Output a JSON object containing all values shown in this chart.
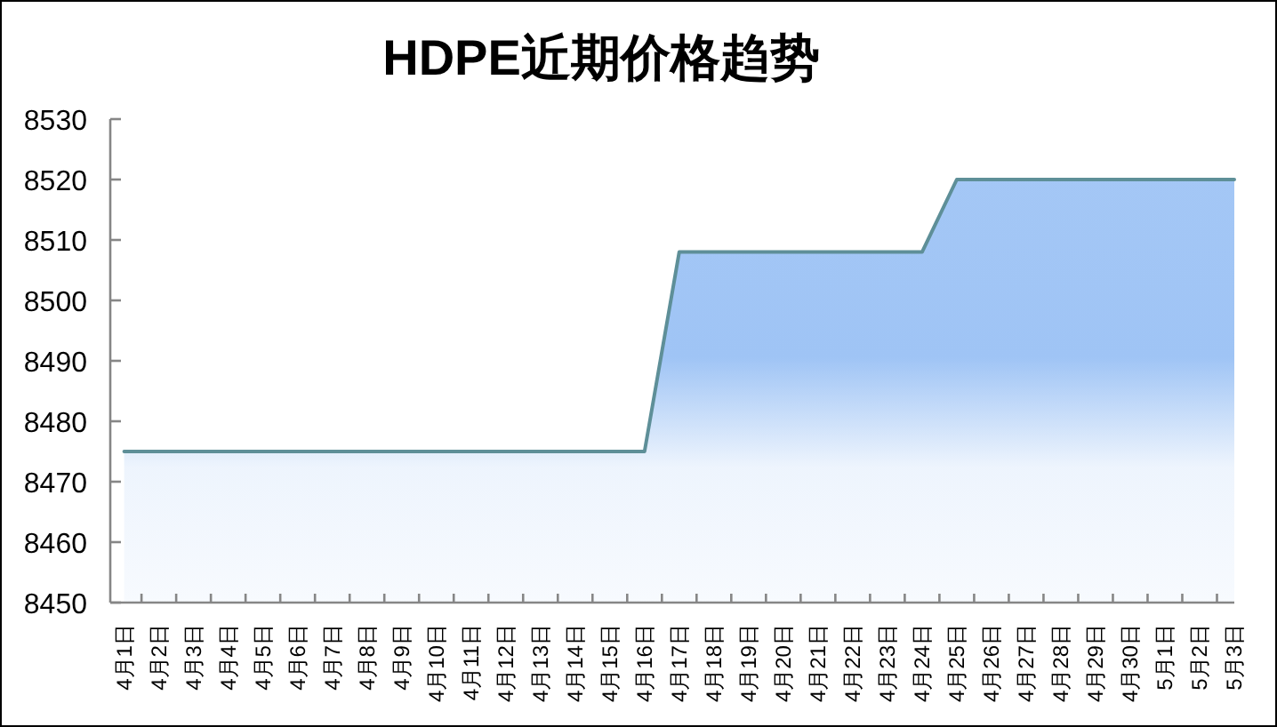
{
  "chart_data": {
    "type": "area",
    "title": "HDPE近期价格趋势",
    "categories": [
      "4月1日",
      "4月2日",
      "4月3日",
      "4月4日",
      "4月5日",
      "4月6日",
      "4月7日",
      "4月8日",
      "4月9日",
      "4月10日",
      "4月11日",
      "4月12日",
      "4月13日",
      "4月14日",
      "4月15日",
      "4月16日",
      "4月17日",
      "4月18日",
      "4月19日",
      "4月20日",
      "4月21日",
      "4月22日",
      "4月23日",
      "4月24日",
      "4月25日",
      "4月26日",
      "4月27日",
      "4月28日",
      "4月29日",
      "4月30日",
      "5月1日",
      "5月2日",
      "5月3日"
    ],
    "values": [
      8475,
      8475,
      8475,
      8475,
      8475,
      8475,
      8475,
      8475,
      8475,
      8475,
      8475,
      8475,
      8475,
      8475,
      8475,
      8475,
      8508,
      8508,
      8508,
      8508,
      8508,
      8508,
      8508,
      8508,
      8520,
      8520,
      8520,
      8520,
      8520,
      8520,
      8520,
      8520,
      8520
    ],
    "color": "#9fc4f5",
    "ylim": [
      8450,
      8530
    ],
    "yticks": [
      8450,
      8460,
      8470,
      8480,
      8490,
      8500,
      8510,
      8520,
      8530
    ]
  }
}
